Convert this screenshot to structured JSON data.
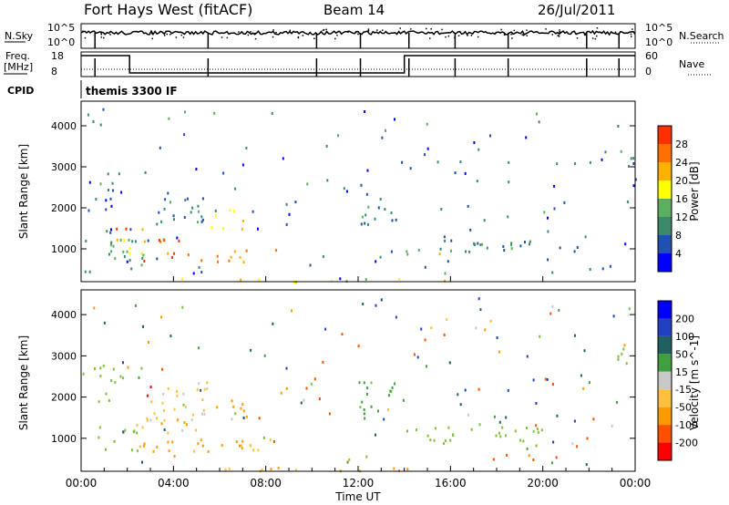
{
  "header": {
    "station": "Fort Hays West (fitACF)",
    "beam": "Beam 14",
    "date": "26/Jul/2011"
  },
  "noise_panel": {
    "left_label": "N.Sky",
    "right_label": "N.Search",
    "tick_top": "10^5",
    "tick_bottom": "10^0",
    "right_tick_top": "10^5",
    "right_tick_bottom": "10^0"
  },
  "freq_panel": {
    "left_label_1": "Freq.",
    "left_label_2": "[MHz]",
    "right_label": "Nave",
    "left_ticks": [
      "18",
      "8"
    ],
    "right_ticks": [
      "60",
      "0"
    ]
  },
  "cpid": {
    "label": "CPID",
    "value": "themis 3300 IF"
  },
  "x_axis": {
    "label": "Time UT",
    "ticks": [
      "00:00",
      "04:00",
      "08:00",
      "12:00",
      "16:00",
      "20:00",
      "00:00"
    ],
    "range_hours": [
      0,
      24
    ]
  },
  "colors": {
    "power": [
      "#0000ff",
      "#2050b0",
      "#3a8a6a",
      "#5bb060",
      "#ffff00",
      "#ffb000",
      "#ff7000",
      "#ff3000",
      "#e00000"
    ],
    "velocity": [
      "#ff0000",
      "#ff5000",
      "#ff9a00",
      "#ffc040",
      "#c8c8c8",
      "#80c040",
      "#40a040",
      "#206060",
      "#2040c0",
      "#0000ff"
    ]
  },
  "chart_data": [
    {
      "type": "heatmap",
      "name": "power",
      "ylabel": "Slant Range [km]",
      "yticks": [
        "1000",
        "2000",
        "3000",
        "4000"
      ],
      "ylim": [
        200,
        4600
      ],
      "colorbar_label": "Power [dB]",
      "colorbar_ticks": [
        "4",
        "8",
        "12",
        "16",
        "20",
        "24",
        "28"
      ],
      "colorbar_range": [
        0,
        32
      ],
      "regions": [
        {
          "t0": 0.5,
          "t1": 2.8,
          "r0": 600,
          "r1": 1300,
          "value": 12
        },
        {
          "t0": 1.5,
          "t1": 4.5,
          "r0": 1150,
          "r1": 1550,
          "value": 24
        },
        {
          "t0": 2.5,
          "t1": 8.5,
          "r0": 700,
          "r1": 1000,
          "value": 22
        },
        {
          "t0": 5.5,
          "t1": 7.0,
          "r0": 1500,
          "r1": 2000,
          "value": 18
        },
        {
          "t0": 0.5,
          "t1": 1.8,
          "r0": 1900,
          "r1": 2900,
          "value": 6
        },
        {
          "t0": 3.0,
          "t1": 5.5,
          "r0": 1600,
          "r1": 2400,
          "value": 8
        },
        {
          "t0": 12.0,
          "t1": 14.0,
          "r0": 1600,
          "r1": 2400,
          "value": 8
        },
        {
          "t0": 14.0,
          "t1": 16.0,
          "r0": 900,
          "r1": 1300,
          "value": 10
        },
        {
          "t0": 15.0,
          "t1": 16.0,
          "r0": 650,
          "r1": 950,
          "value": 18
        },
        {
          "t0": 16.0,
          "t1": 20.0,
          "r0": 950,
          "r1": 1250,
          "value": 8
        },
        {
          "t0": 18.5,
          "t1": 19.5,
          "r0": 1000,
          "r1": 1200,
          "value": 12
        },
        {
          "t0": 23.2,
          "t1": 24.0,
          "r0": 2700,
          "r1": 3300,
          "value": 8
        },
        {
          "t0": 4.0,
          "t1": 16.0,
          "r0": 220,
          "r1": 320,
          "value": 16
        }
      ]
    },
    {
      "type": "heatmap",
      "name": "velocity",
      "ylabel": "Slant Range [km]",
      "yticks": [
        "1000",
        "2000",
        "3000",
        "4000"
      ],
      "ylim": [
        200,
        4600
      ],
      "colorbar_label": "Velocity [m s^-1]",
      "colorbar_ticks": [
        "200",
        "100",
        "50",
        "15",
        "-15",
        "-50",
        "-100",
        "-200"
      ],
      "regions": [
        {
          "t0": 0.5,
          "t1": 2.5,
          "r0": 700,
          "r1": 1400,
          "value": 0
        },
        {
          "t0": 0.5,
          "t1": 1.8,
          "r0": 1900,
          "r1": 2900,
          "value": 0
        },
        {
          "t0": 2.3,
          "t1": 3.3,
          "r0": 1900,
          "r1": 2300,
          "value": -220
        },
        {
          "t0": 2.5,
          "t1": 8.5,
          "r0": 700,
          "r1": 1000,
          "value": -60
        },
        {
          "t0": 1.5,
          "t1": 5.0,
          "r0": 1150,
          "r1": 1550,
          "value": -40
        },
        {
          "t0": 5.5,
          "t1": 7.2,
          "r0": 1500,
          "r1": 2000,
          "value": -80
        },
        {
          "t0": 3.0,
          "t1": 5.5,
          "r0": 1600,
          "r1": 2400,
          "value": -30
        },
        {
          "t0": 12.0,
          "t1": 14.0,
          "r0": 1600,
          "r1": 2400,
          "value": 20
        },
        {
          "t0": 14.0,
          "t1": 20.0,
          "r0": 900,
          "r1": 1300,
          "value": 0
        },
        {
          "t0": 23.2,
          "t1": 24.0,
          "r0": 2700,
          "r1": 3300,
          "value": 0
        },
        {
          "t0": 4.0,
          "t1": 16.0,
          "r0": 220,
          "r1": 320,
          "value": -60
        }
      ]
    }
  ],
  "freq_trace": [
    {
      "t": 0.0,
      "v": 0.85
    },
    {
      "t": 2.1,
      "v": 0.85
    },
    {
      "t": 2.1,
      "v": 0.15
    },
    {
      "t": 14.0,
      "v": 0.15
    },
    {
      "t": 14.0,
      "v": 0.85
    },
    {
      "t": 24.0,
      "v": 0.85
    }
  ],
  "scan_breaks_hours": [
    0.6,
    5.5,
    10.2,
    12.1,
    14.2,
    16.2,
    18.5,
    21.9,
    23.3
  ]
}
